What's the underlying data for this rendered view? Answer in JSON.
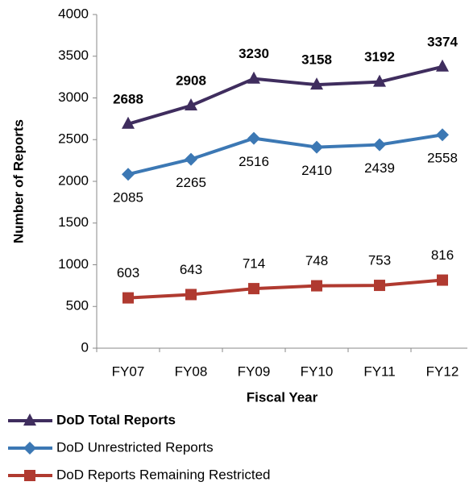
{
  "chart_data": {
    "type": "line",
    "x_label": "Fiscal Year",
    "y_label": "Number of Reports",
    "categories": [
      "FY07",
      "FY08",
      "FY09",
      "FY10",
      "FY11",
      "FY12"
    ],
    "series": [
      {
        "name": "DoD Total Reports",
        "color": "#3f2d5e",
        "marker": "triangle",
        "label_position": "above",
        "bold": true,
        "values": [
          2688,
          2908,
          3230,
          3158,
          3192,
          3374
        ]
      },
      {
        "name": "DoD Unrestricted Reports",
        "color": "#3c78b4",
        "marker": "diamond",
        "label_position": "below",
        "bold": false,
        "values": [
          2085,
          2265,
          2516,
          2410,
          2439,
          2558
        ]
      },
      {
        "name": "DoD Reports Remaining Restricted",
        "color": "#b03a30",
        "marker": "square",
        "label_position": "above",
        "bold": false,
        "values": [
          603,
          643,
          714,
          748,
          753,
          816
        ]
      }
    ],
    "ylim": [
      0,
      4000
    ],
    "yticks": [
      0,
      500,
      1000,
      1500,
      2000,
      2500,
      3000,
      3500,
      4000
    ],
    "grid": false,
    "legend": "bottom"
  }
}
